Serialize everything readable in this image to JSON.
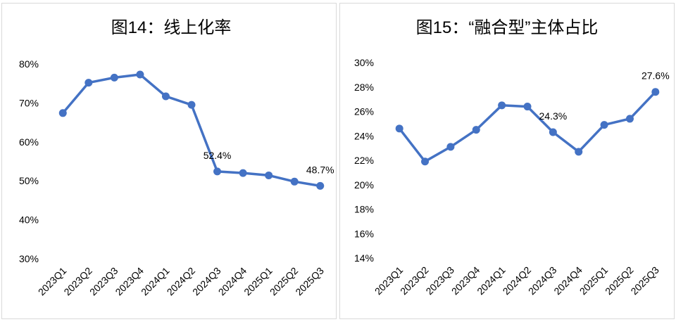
{
  "chart_data": [
    {
      "type": "line",
      "title": "图14：线上化率",
      "categories": [
        "2023Q1",
        "2023Q2",
        "2023Q3",
        "2023Q4",
        "2024Q1",
        "2024Q2",
        "2024Q3",
        "2024Q4",
        "2025Q1",
        "2025Q2",
        "2025Q3"
      ],
      "series": [
        {
          "values": [
            67.4,
            75.2,
            76.5,
            77.3,
            71.7,
            69.5,
            52.4,
            52.0,
            51.4,
            49.8,
            48.7
          ]
        }
      ],
      "data_labels": [
        {
          "index": 6,
          "text": "52.4%"
        },
        {
          "index": 10,
          "text": "48.7%"
        }
      ],
      "yticks": [
        "30%",
        "40%",
        "50%",
        "60%",
        "70%",
        "80%"
      ],
      "ylim": [
        30,
        80
      ],
      "xlabel": "",
      "ylabel": "",
      "color": "#4472C4",
      "grid": false,
      "legend": "none"
    },
    {
      "type": "line",
      "title": "图15：“融合型”主体占比",
      "categories": [
        "2023Q1",
        "2023Q2",
        "2023Q3",
        "2023Q4",
        "2024Q1",
        "2024Q2",
        "2024Q3",
        "2024Q4",
        "2025Q1",
        "2025Q2",
        "2025Q3"
      ],
      "series": [
        {
          "values": [
            24.6,
            21.9,
            23.1,
            24.5,
            26.5,
            26.4,
            24.3,
            22.7,
            24.9,
            25.4,
            27.6
          ]
        }
      ],
      "data_labels": [
        {
          "index": 6,
          "text": "24.3%"
        },
        {
          "index": 10,
          "text": "27.6%"
        }
      ],
      "yticks": [
        "14%",
        "16%",
        "18%",
        "20%",
        "22%",
        "24%",
        "26%",
        "28%",
        "30%"
      ],
      "ylim": [
        14,
        30
      ],
      "xlabel": "",
      "ylabel": "",
      "color": "#4472C4",
      "grid": false,
      "legend": "none"
    }
  ]
}
